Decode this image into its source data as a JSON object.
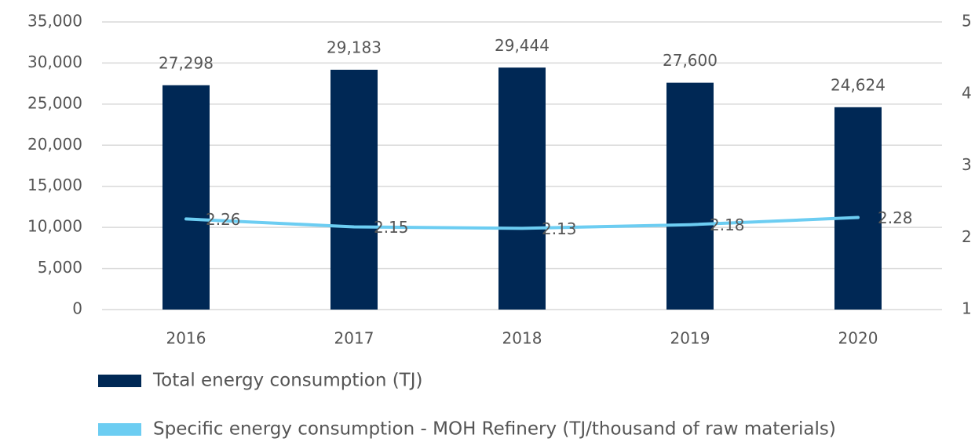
{
  "chart_data": {
    "type": "bar-line",
    "categories": [
      "2016",
      "2017",
      "2018",
      "2019",
      "2020"
    ],
    "series": [
      {
        "name": "Total energy consumption (TJ)",
        "type": "bar",
        "color": "#002855",
        "axis": "y",
        "values": [
          27298,
          29183,
          29444,
          27600,
          24624
        ],
        "value_labels": [
          "27,298",
          "29,183",
          "29,444",
          "27,600",
          "24,624"
        ]
      },
      {
        "name": "Specific energy consumption - MOH Refinery (TJ/thousand of raw materials)",
        "type": "line",
        "color": "#6ccdf2",
        "axis": "y2",
        "values": [
          2.26,
          2.15,
          2.13,
          2.18,
          2.28
        ]
      }
    ],
    "ylim": [
      0,
      35000
    ],
    "yticks": [
      0,
      {
        "value": 5000,
        "label": "5,000"
      },
      {
        "value": 10000,
        "label": "10,000"
      },
      {
        "value": 15000,
        "label": "15,000"
      },
      {
        "value": 20000,
        "label": "20,000"
      },
      {
        "value": 25000,
        "label": "25,000"
      },
      {
        "value": 30000,
        "label": "30,000"
      },
      {
        "value": 35000,
        "label": "35,000"
      }
    ],
    "y2lim": [
      1,
      5
    ],
    "y2ticks": [
      1,
      2,
      3,
      4,
      5
    ],
    "grid": true
  }
}
